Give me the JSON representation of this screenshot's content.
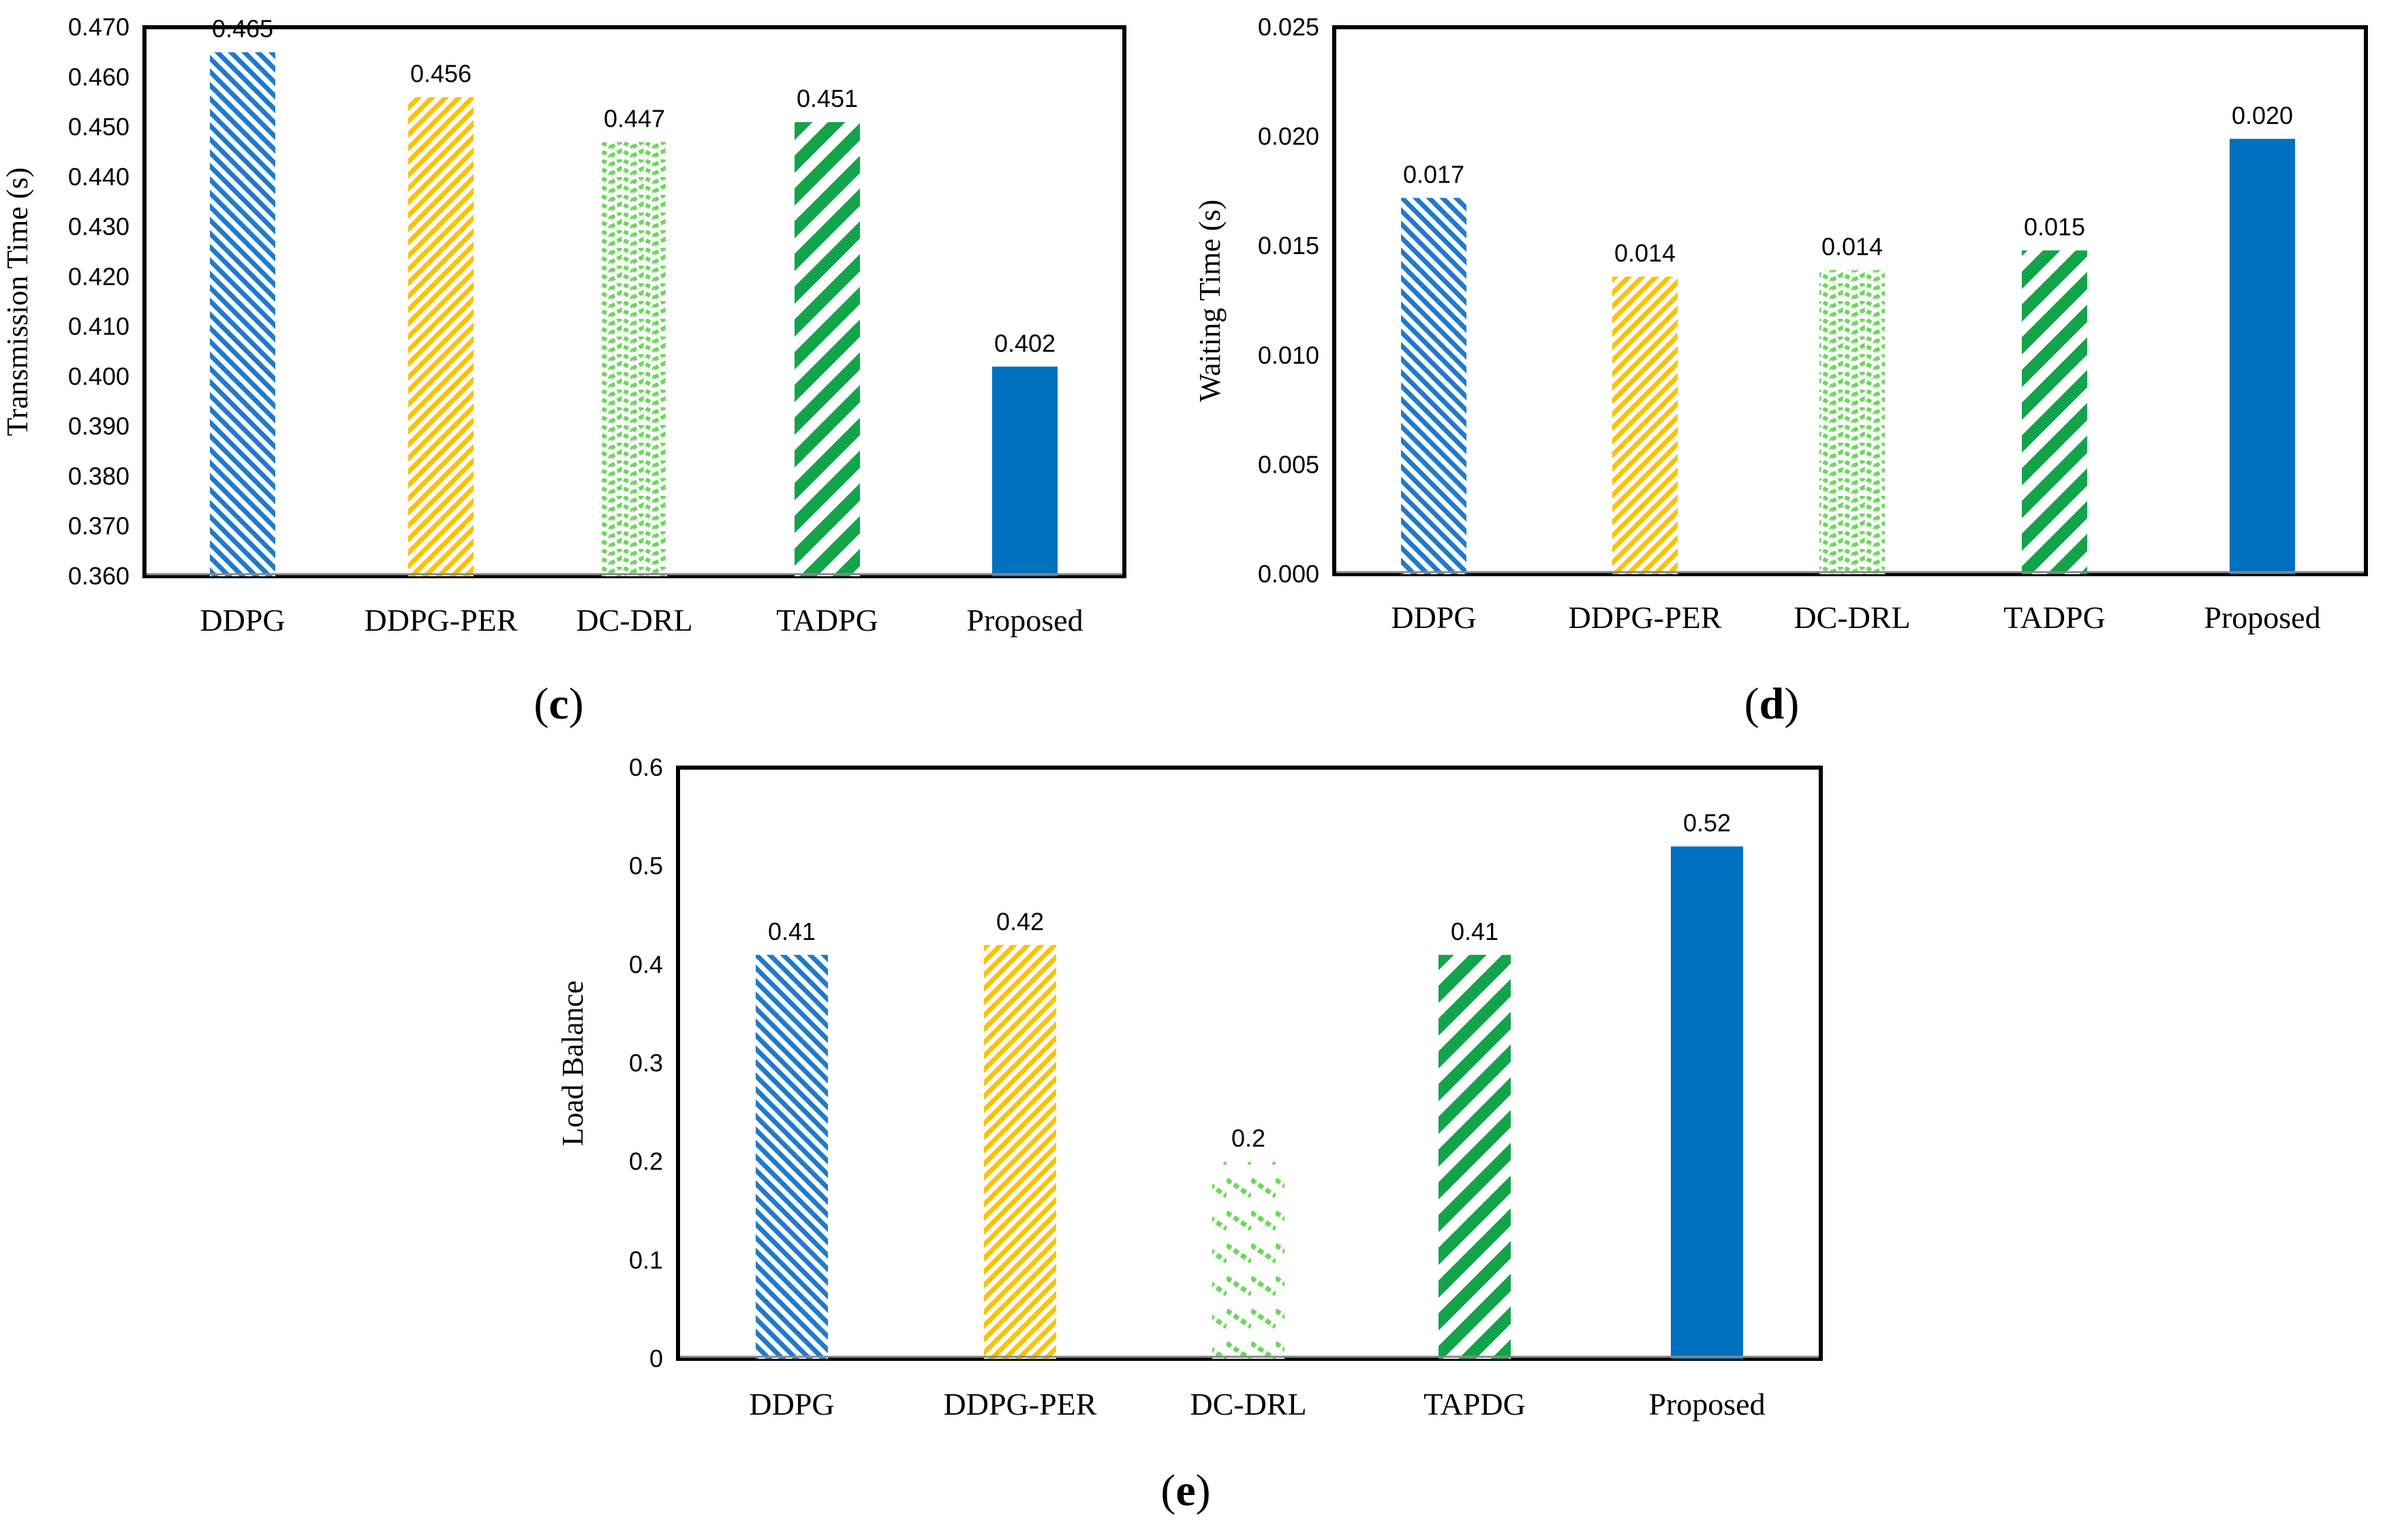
{
  "colors": {
    "blue": "#1f7acb",
    "orange": "#ffc000",
    "light_green": "#6bd85a",
    "green": "#12a44a",
    "solid_blue": "#0070c0"
  },
  "chart_data": [
    {
      "type": "bar",
      "panel": "c",
      "caption": {
        "open": "(",
        "letter": "c",
        "close": ")"
      },
      "ylabel": "Transmission Time (s)",
      "xlabel": "",
      "ylim": [
        0.36,
        0.47
      ],
      "yticks": [
        "0.360",
        "0.370",
        "0.380",
        "0.390",
        "0.400",
        "0.410",
        "0.420",
        "0.430",
        "0.440",
        "0.450",
        "0.460",
        "0.470"
      ],
      "categories": [
        "DDPG",
        "DDPG-PER",
        "DC-DRL",
        "TADPG",
        "Proposed"
      ],
      "values": [
        0.465,
        0.456,
        0.447,
        0.451,
        0.402
      ],
      "data_labels": [
        "0.465",
        "0.456",
        "0.447",
        "0.451",
        "0.402"
      ],
      "patterns": [
        "p-blue",
        "p-orange",
        "p-lightgreen-wave",
        "p-green-wide",
        "solid"
      ]
    },
    {
      "type": "bar",
      "panel": "d",
      "caption": {
        "open": "(",
        "letter": "d",
        "close": ")"
      },
      "ylabel": "Waiting Time (s)",
      "xlabel": "",
      "ylim": [
        0,
        0.025
      ],
      "yticks": [
        "0.000",
        "0.005",
        "0.010",
        "0.015",
        "0.020",
        "0.025"
      ],
      "categories": [
        "DDPG",
        "DDPG-PER",
        "DC-DRL",
        "TADPG",
        "Proposed"
      ],
      "values": [
        0.0172,
        0.0136,
        0.0139,
        0.0148,
        0.0199
      ],
      "data_labels": [
        "0.017",
        "0.014",
        "0.014",
        "0.015",
        "0.020"
      ],
      "patterns": [
        "p-blue",
        "p-orange",
        "p-lightgreen-wave",
        "p-green-wide",
        "solid"
      ]
    },
    {
      "type": "bar",
      "panel": "e",
      "caption": {
        "open": "(",
        "letter": "e",
        "close": ")"
      },
      "ylabel": "Load Balance",
      "xlabel": "",
      "ylim": [
        0,
        0.6
      ],
      "yticks": [
        "0",
        "0.1",
        "0.2",
        "0.3",
        "0.4",
        "0.5",
        "0.6"
      ],
      "categories": [
        "DDPG",
        "DDPG-PER",
        "DC-DRL",
        "TAPDG",
        "Proposed"
      ],
      "values": [
        0.41,
        0.42,
        0.2,
        0.41,
        0.52
      ],
      "data_labels": [
        "0.41",
        "0.42",
        "0.2",
        "0.41",
        "0.52"
      ],
      "patterns": [
        "p-blue",
        "p-orange",
        "p-lightgreen-dash",
        "p-green-wide",
        "solid"
      ]
    }
  ]
}
